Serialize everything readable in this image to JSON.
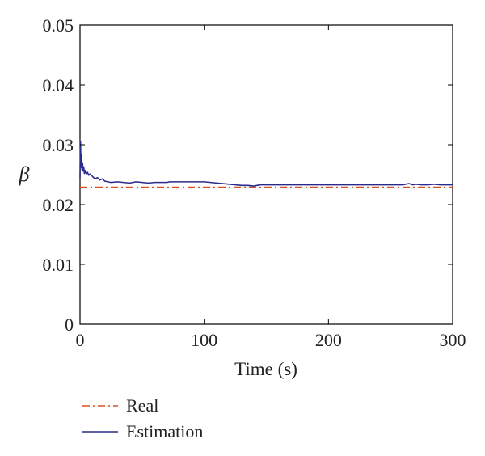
{
  "chart_data": {
    "type": "line",
    "title": "",
    "xlabel": "Time (s)",
    "ylabel": "β",
    "xlim": [
      0,
      300
    ],
    "ylim": [
      0,
      0.05
    ],
    "xticks": [
      0,
      100,
      200,
      300
    ],
    "yticks": [
      0,
      0.01,
      0.02,
      0.03,
      0.04,
      0.05
    ],
    "xtick_labels": [
      "0",
      "100",
      "200",
      "300"
    ],
    "ytick_labels": [
      "0",
      "0.01",
      "0.02",
      "0.03",
      "0.04",
      "0.05"
    ],
    "grid": false,
    "legend_position": "bottom-left, below plot",
    "series": [
      {
        "name": "Real",
        "color": "#d9531e",
        "style": "dash-dot",
        "x": [
          0,
          300
        ],
        "y": [
          0.0229,
          0.0229
        ]
      },
      {
        "name": "Estimation",
        "color": "#2b2b8c",
        "style": "solid",
        "x": [
          0,
          0.4,
          0.8,
          1.2,
          1.6,
          2.0,
          2.5,
          3,
          3.5,
          4,
          5,
          6,
          7,
          8,
          10,
          12,
          14,
          16,
          18,
          20,
          25,
          30,
          35,
          40,
          45,
          50,
          55,
          60,
          65,
          70,
          72,
          80,
          90,
          100,
          105,
          110,
          115,
          120,
          125,
          130,
          135,
          140,
          145,
          150,
          160,
          180,
          200,
          220,
          240,
          260,
          262,
          265,
          268,
          270,
          275,
          280,
          285,
          290,
          295,
          300
        ],
        "y": [
          0.0245,
          0.0305,
          0.0262,
          0.0284,
          0.0258,
          0.027,
          0.0256,
          0.0263,
          0.0252,
          0.0257,
          0.0251,
          0.0254,
          0.0249,
          0.0251,
          0.0247,
          0.0243,
          0.0245,
          0.0241,
          0.0243,
          0.0239,
          0.0237,
          0.0238,
          0.0237,
          0.0236,
          0.0238,
          0.0237,
          0.0236,
          0.0237,
          0.0237,
          0.0237,
          0.0238,
          0.0238,
          0.0238,
          0.0238,
          0.0237,
          0.0236,
          0.0235,
          0.0234,
          0.0233,
          0.0232,
          0.0232,
          0.0231,
          0.0233,
          0.0233,
          0.0233,
          0.0233,
          0.0233,
          0.0233,
          0.0233,
          0.0233,
          0.0234,
          0.0235,
          0.0233,
          0.0234,
          0.0233,
          0.0233,
          0.0234,
          0.0233,
          0.0233,
          0.0233
        ]
      }
    ]
  }
}
